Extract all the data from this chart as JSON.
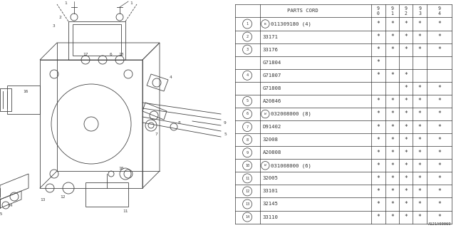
{
  "bg_color": "#ffffff",
  "diagram_label": "A121A00069",
  "table": {
    "rows": [
      {
        "num": "1",
        "circle": true,
        "prefix": "B",
        "part": "011309180 (4)",
        "stars": [
          true,
          true,
          true,
          true,
          true
        ]
      },
      {
        "num": "2",
        "circle": true,
        "prefix": "",
        "part": "33171",
        "stars": [
          true,
          true,
          true,
          true,
          true
        ]
      },
      {
        "num": "3",
        "circle": true,
        "prefix": "",
        "part": "33176",
        "stars": [
          true,
          true,
          true,
          true,
          true
        ]
      },
      {
        "num": "",
        "circle": false,
        "prefix": "",
        "part": "G71804",
        "stars": [
          true,
          false,
          false,
          false,
          false
        ]
      },
      {
        "num": "4",
        "circle": true,
        "prefix": "",
        "part": "G71807",
        "stars": [
          true,
          true,
          true,
          false,
          false
        ]
      },
      {
        "num": "",
        "circle": false,
        "prefix": "",
        "part": "G71808",
        "stars": [
          false,
          false,
          true,
          true,
          true
        ]
      },
      {
        "num": "5",
        "circle": true,
        "prefix": "",
        "part": "A20846",
        "stars": [
          true,
          true,
          true,
          true,
          true
        ]
      },
      {
        "num": "6",
        "circle": true,
        "prefix": "W",
        "part": "032008000 (8)",
        "stars": [
          true,
          true,
          true,
          true,
          true
        ]
      },
      {
        "num": "7",
        "circle": true,
        "prefix": "",
        "part": "D91402",
        "stars": [
          true,
          true,
          true,
          true,
          true
        ]
      },
      {
        "num": "8",
        "circle": true,
        "prefix": "",
        "part": "32008",
        "stars": [
          true,
          true,
          true,
          true,
          true
        ]
      },
      {
        "num": "9",
        "circle": true,
        "prefix": "",
        "part": "A20808",
        "stars": [
          true,
          true,
          true,
          true,
          true
        ]
      },
      {
        "num": "10",
        "circle": true,
        "prefix": "W",
        "part": "031008000 (6)",
        "stars": [
          true,
          true,
          true,
          true,
          true
        ]
      },
      {
        "num": "11",
        "circle": true,
        "prefix": "",
        "part": "32005",
        "stars": [
          true,
          true,
          true,
          true,
          true
        ]
      },
      {
        "num": "12",
        "circle": true,
        "prefix": "",
        "part": "33101",
        "stars": [
          true,
          true,
          true,
          true,
          true
        ]
      },
      {
        "num": "13",
        "circle": true,
        "prefix": "",
        "part": "32145",
        "stars": [
          true,
          true,
          true,
          true,
          true
        ]
      },
      {
        "num": "14",
        "circle": true,
        "prefix": "",
        "part": "33110",
        "stars": [
          true,
          true,
          true,
          true,
          true
        ]
      }
    ]
  }
}
